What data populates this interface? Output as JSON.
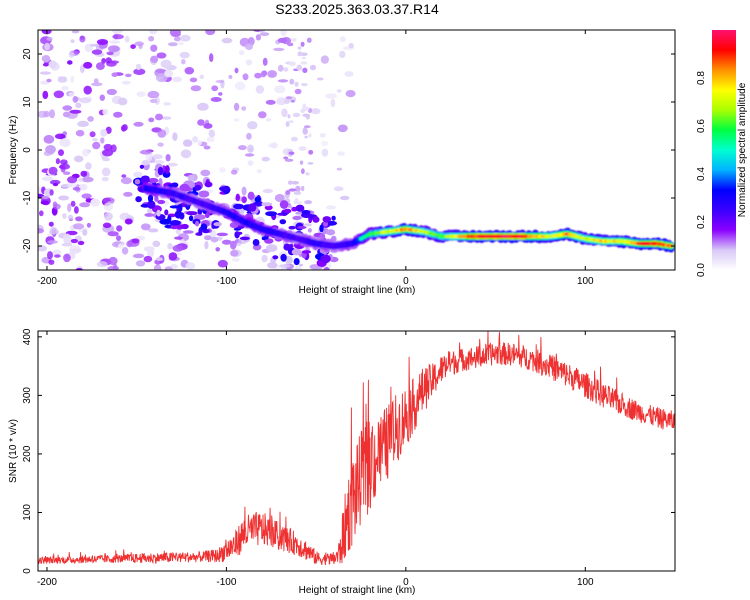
{
  "title": "S233.2025.363.03.37.R14",
  "chart_data": [
    {
      "type": "heatmap",
      "title": "S233.2025.363.03.37.R14",
      "xlabel": "Height of straight line (km)",
      "ylabel": "Frequency (Hz)",
      "xlim": [
        -205,
        150
      ],
      "ylim": [
        -25,
        25
      ],
      "x_ticks": [
        -200,
        -100,
        0,
        100
      ],
      "y_ticks": [
        20,
        10,
        0,
        -10,
        -20
      ],
      "colorbar": {
        "label": "Normalized spectral amplitude",
        "range": [
          0.0,
          1.0
        ],
        "ticks": [
          "0.0",
          "0.2",
          "0.4",
          "0.6",
          "0.8"
        ],
        "colors": [
          "#ffffff",
          "#d8c8f6",
          "#8a00ff",
          "#3a00ff",
          "#0000ff",
          "#00b4ff",
          "#00ffd0",
          "#00ff40",
          "#aaff00",
          "#ffff00",
          "#ff9000",
          "#ff0000",
          "#ff1070"
        ]
      },
      "ridge": [
        {
          "x": -145,
          "y": -8,
          "a": 0.45
        },
        {
          "x": -130,
          "y": -9,
          "a": 0.4
        },
        {
          "x": -115,
          "y": -11,
          "a": 0.35
        },
        {
          "x": -100,
          "y": -13,
          "a": 0.42
        },
        {
          "x": -90,
          "y": -15,
          "a": 0.45
        },
        {
          "x": -80,
          "y": -16.5,
          "a": 0.45
        },
        {
          "x": -70,
          "y": -17.5,
          "a": 0.4
        },
        {
          "x": -60,
          "y": -18.5,
          "a": 0.35
        },
        {
          "x": -50,
          "y": -19.5,
          "a": 0.4
        },
        {
          "x": -40,
          "y": -20,
          "a": 0.35
        },
        {
          "x": -30,
          "y": -19.5,
          "a": 0.4
        },
        {
          "x": -20,
          "y": -17.5,
          "a": 0.6
        },
        {
          "x": -10,
          "y": -17.0,
          "a": 0.72
        },
        {
          "x": 0,
          "y": -16.5,
          "a": 0.88
        },
        {
          "x": 10,
          "y": -17.0,
          "a": 0.7
        },
        {
          "x": 20,
          "y": -18.0,
          "a": 0.65
        },
        {
          "x": 30,
          "y": -18.0,
          "a": 0.8
        },
        {
          "x": 40,
          "y": -18.0,
          "a": 0.92
        },
        {
          "x": 50,
          "y": -18.0,
          "a": 1.0
        },
        {
          "x": 60,
          "y": -18.0,
          "a": 0.98
        },
        {
          "x": 70,
          "y": -18.0,
          "a": 0.9
        },
        {
          "x": 80,
          "y": -18.0,
          "a": 0.75
        },
        {
          "x": 90,
          "y": -17.5,
          "a": 0.85
        },
        {
          "x": 100,
          "y": -18.5,
          "a": 0.7
        },
        {
          "x": 110,
          "y": -19.0,
          "a": 0.8
        },
        {
          "x": 120,
          "y": -19.0,
          "a": 0.75
        },
        {
          "x": 130,
          "y": -19.5,
          "a": 0.88
        },
        {
          "x": 140,
          "y": -19.5,
          "a": 0.95
        },
        {
          "x": 148,
          "y": -20.0,
          "a": 0.85
        }
      ]
    },
    {
      "type": "line",
      "title": "",
      "xlabel": "Height of straight line (km)",
      "ylabel": "SNR (10 * v/v)",
      "xlim": [
        -205,
        150
      ],
      "ylim": [
        0,
        410
      ],
      "x_ticks": [
        -200,
        -100,
        0,
        100
      ],
      "y_ticks": [
        0,
        100,
        200,
        300,
        400
      ],
      "series": [
        {
          "name": "SNR",
          "color": "#ee3030",
          "x": [
            -205,
            -190,
            -175,
            -160,
            -145,
            -130,
            -115,
            -105,
            -95,
            -90,
            -85,
            -80,
            -75,
            -70,
            -65,
            -60,
            -55,
            -50,
            -45,
            -40,
            -37,
            -35,
            -32,
            -30,
            -27,
            -25,
            -20,
            -15,
            -10,
            -5,
            0,
            5,
            10,
            15,
            20,
            25,
            30,
            40,
            50,
            60,
            70,
            80,
            90,
            100,
            110,
            120,
            130,
            140,
            150
          ],
          "y": [
            18,
            19,
            20,
            21,
            22,
            23,
            24,
            26,
            45,
            65,
            70,
            72,
            65,
            58,
            52,
            45,
            35,
            22,
            20,
            21,
            30,
            60,
            100,
            120,
            140,
            160,
            180,
            200,
            220,
            245,
            265,
            285,
            310,
            325,
            345,
            355,
            360,
            365,
            372,
            370,
            362,
            350,
            335,
            318,
            300,
            285,
            272,
            262,
            255
          ],
          "noise": [
            6,
            6,
            7,
            7,
            9,
            9,
            9,
            12,
            25,
            30,
            30,
            30,
            25,
            25,
            22,
            20,
            18,
            12,
            10,
            12,
            25,
            50,
            70,
            80,
            80,
            80,
            80,
            70,
            65,
            60,
            55,
            45,
            40,
            30,
            25,
            22,
            20,
            20,
            20,
            20,
            20,
            22,
            22,
            22,
            22,
            20,
            18,
            18,
            18
          ]
        }
      ]
    }
  ]
}
